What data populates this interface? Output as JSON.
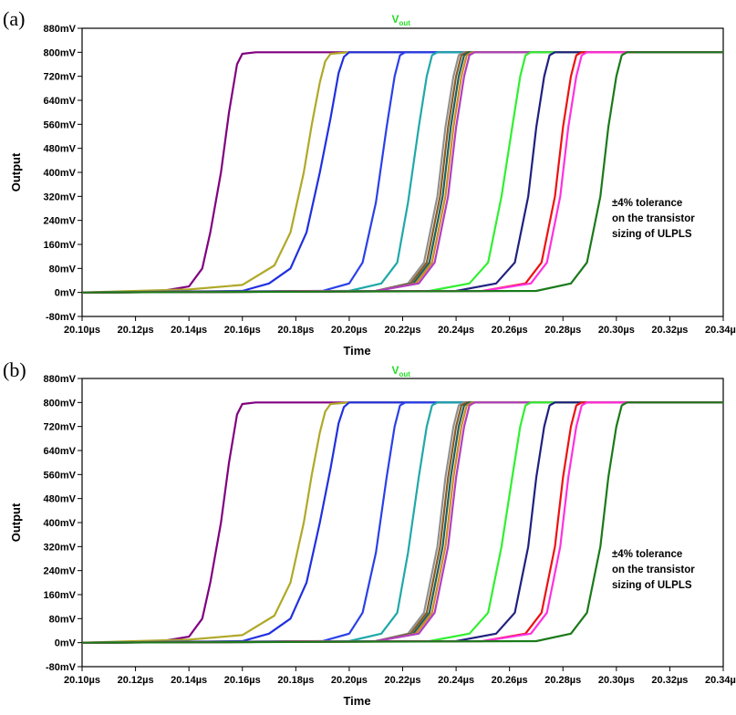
{
  "chart_data": [
    {
      "type": "line",
      "panel": "(a)",
      "title": "V",
      "title_sub": "out",
      "title_color": "#22dd22",
      "xlabel": "Time",
      "ylabel": "Output",
      "x_ticks": [
        "20.10µs",
        "20.12µs",
        "20.14µs",
        "20.16µs",
        "20.18µs",
        "20.20µs",
        "20.22µs",
        "20.24µs",
        "20.26µs",
        "20.28µs",
        "20.30µs",
        "20.32µs",
        "20.34µs"
      ],
      "y_ticks": [
        "-80mV",
        "0mV",
        "80mV",
        "160mV",
        "240mV",
        "320mV",
        "400mV",
        "480mV",
        "560mV",
        "640mV",
        "720mV",
        "800mV",
        "880mV"
      ],
      "xlim_us": [
        20.1,
        20.34
      ],
      "ylim_mV": [
        -80,
        880
      ],
      "annotation": [
        "±4% tolerance",
        "on the transistor",
        "sizing of  ULPLS"
      ],
      "series": [
        {
          "name": "purple",
          "color": "#800080",
          "x": [
            20.1,
            20.13,
            20.14,
            20.145,
            20.148,
            20.152,
            20.155,
            20.158,
            20.16,
            20.165,
            20.34
          ],
          "y": [
            0,
            5,
            20,
            80,
            200,
            400,
            600,
            760,
            795,
            800,
            800
          ]
        },
        {
          "name": "olive",
          "color": "#b0a828",
          "x": [
            20.1,
            20.14,
            20.16,
            20.172,
            20.178,
            20.183,
            20.186,
            20.189,
            20.191,
            20.193,
            20.2,
            20.34
          ],
          "y": [
            0,
            10,
            25,
            90,
            200,
            400,
            560,
            700,
            770,
            795,
            800,
            800
          ]
        },
        {
          "name": "blue",
          "color": "#2030e0",
          "x": [
            20.1,
            20.16,
            20.17,
            20.178,
            20.184,
            20.189,
            20.193,
            20.196,
            20.198,
            20.2,
            20.34
          ],
          "y": [
            0,
            5,
            30,
            80,
            200,
            400,
            580,
            730,
            785,
            800,
            800
          ]
        },
        {
          "name": "blue2",
          "color": "#2a40e8",
          "x": [
            20.1,
            20.19,
            20.2,
            20.205,
            20.21,
            20.214,
            20.217,
            20.219,
            20.221,
            20.34
          ],
          "y": [
            0,
            5,
            30,
            100,
            300,
            550,
            720,
            790,
            800,
            800
          ]
        },
        {
          "name": "teal",
          "color": "#20a8a8",
          "x": [
            20.1,
            20.2,
            20.212,
            20.218,
            20.222,
            20.226,
            20.229,
            20.231,
            20.233,
            20.34
          ],
          "y": [
            0,
            5,
            30,
            100,
            300,
            550,
            720,
            790,
            800,
            800
          ]
        },
        {
          "name": "gray",
          "color": "#909090",
          "x": [
            20.1,
            20.21,
            20.222,
            20.228,
            20.233,
            20.236,
            20.239,
            20.241,
            20.243,
            20.34
          ],
          "y": [
            0,
            5,
            30,
            100,
            320,
            550,
            720,
            790,
            800,
            800
          ]
        },
        {
          "name": "brown",
          "color": "#8a5a20",
          "x": [
            20.1,
            20.21,
            20.223,
            20.229,
            20.234,
            20.237,
            20.24,
            20.242,
            20.244,
            20.34
          ],
          "y": [
            0,
            5,
            30,
            100,
            320,
            550,
            720,
            790,
            800,
            800
          ]
        },
        {
          "name": "darkteal",
          "color": "#1a6060",
          "x": [
            20.1,
            20.21,
            20.224,
            20.23,
            20.235,
            20.238,
            20.241,
            20.243,
            20.245,
            20.34
          ],
          "y": [
            0,
            5,
            30,
            100,
            320,
            550,
            720,
            790,
            800,
            800
          ]
        },
        {
          "name": "orange",
          "color": "#d08a20",
          "x": [
            20.1,
            20.21,
            20.225,
            20.231,
            20.236,
            20.239,
            20.242,
            20.244,
            20.246,
            20.34
          ],
          "y": [
            0,
            5,
            30,
            100,
            320,
            550,
            720,
            790,
            800,
            800
          ]
        },
        {
          "name": "violet",
          "color": "#b040c0",
          "x": [
            20.1,
            20.21,
            20.226,
            20.232,
            20.237,
            20.24,
            20.243,
            20.245,
            20.247,
            20.34
          ],
          "y": [
            0,
            5,
            30,
            100,
            320,
            550,
            720,
            790,
            800,
            800
          ]
        },
        {
          "name": "green",
          "color": "#30f030",
          "x": [
            20.1,
            20.23,
            20.245,
            20.252,
            20.257,
            20.261,
            20.264,
            20.266,
            20.268,
            20.34
          ],
          "y": [
            0,
            5,
            30,
            100,
            320,
            550,
            720,
            790,
            800,
            800
          ]
        },
        {
          "name": "navy",
          "color": "#202080",
          "x": [
            20.1,
            20.24,
            20.255,
            20.262,
            20.267,
            20.27,
            20.273,
            20.275,
            20.277,
            20.34
          ],
          "y": [
            0,
            5,
            30,
            100,
            320,
            550,
            720,
            790,
            800,
            800
          ]
        },
        {
          "name": "red",
          "color": "#ee1010",
          "x": [
            20.1,
            20.25,
            20.266,
            20.272,
            20.277,
            20.28,
            20.283,
            20.285,
            20.287,
            20.34
          ],
          "y": [
            0,
            5,
            30,
            100,
            320,
            550,
            720,
            790,
            800,
            800
          ]
        },
        {
          "name": "magenta",
          "color": "#ff30e0",
          "x": [
            20.1,
            20.25,
            20.268,
            20.274,
            20.279,
            20.282,
            20.285,
            20.287,
            20.289,
            20.34
          ],
          "y": [
            0,
            5,
            30,
            100,
            320,
            550,
            720,
            790,
            800,
            800
          ]
        },
        {
          "name": "darkgreen",
          "color": "#1a7a1a",
          "x": [
            20.1,
            20.27,
            20.283,
            20.289,
            20.294,
            20.297,
            20.3,
            20.302,
            20.304,
            20.34
          ],
          "y": [
            0,
            5,
            30,
            100,
            320,
            550,
            720,
            790,
            800,
            800
          ]
        }
      ]
    },
    {
      "type": "line",
      "panel": "(b)",
      "title": "V",
      "title_sub": "out",
      "title_color": "#22dd22",
      "xlabel": "Time",
      "ylabel": "Output",
      "x_ticks": [
        "20.10µs",
        "20.12µs",
        "20.14µs",
        "20.16µs",
        "20.18µs",
        "20.20µs",
        "20.22µs",
        "20.24µs",
        "20.26µs",
        "20.28µs",
        "20.30µs",
        "20.32µs",
        "20.34µs"
      ],
      "y_ticks": [
        "-80mV",
        "0mV",
        "80mV",
        "160mV",
        "240mV",
        "320mV",
        "400mV",
        "480mV",
        "560mV",
        "640mV",
        "720mV",
        "800mV",
        "880mV"
      ],
      "xlim_us": [
        20.1,
        20.34
      ],
      "ylim_mV": [
        -80,
        880
      ],
      "annotation": [
        "±4% tolerance",
        "on the transistor",
        "sizing of  ULPLS"
      ],
      "series": [
        {
          "name": "purple",
          "color": "#800080",
          "x": [
            20.1,
            20.13,
            20.14,
            20.145,
            20.148,
            20.152,
            20.155,
            20.158,
            20.16,
            20.165,
            20.34
          ],
          "y": [
            0,
            5,
            20,
            80,
            200,
            400,
            600,
            760,
            795,
            800,
            800
          ]
        },
        {
          "name": "olive",
          "color": "#b0a828",
          "x": [
            20.1,
            20.14,
            20.16,
            20.172,
            20.178,
            20.183,
            20.186,
            20.189,
            20.191,
            20.193,
            20.2,
            20.34
          ],
          "y": [
            0,
            10,
            25,
            90,
            200,
            400,
            560,
            700,
            770,
            795,
            800,
            800
          ]
        },
        {
          "name": "blue",
          "color": "#2030e0",
          "x": [
            20.1,
            20.16,
            20.17,
            20.178,
            20.184,
            20.189,
            20.193,
            20.196,
            20.198,
            20.2,
            20.34
          ],
          "y": [
            0,
            5,
            30,
            80,
            200,
            400,
            580,
            730,
            785,
            800,
            800
          ]
        },
        {
          "name": "blue2",
          "color": "#2a40e8",
          "x": [
            20.1,
            20.19,
            20.2,
            20.205,
            20.21,
            20.214,
            20.217,
            20.219,
            20.221,
            20.34
          ],
          "y": [
            0,
            5,
            30,
            100,
            300,
            550,
            720,
            790,
            800,
            800
          ]
        },
        {
          "name": "teal",
          "color": "#20a8a8",
          "x": [
            20.1,
            20.2,
            20.212,
            20.218,
            20.222,
            20.226,
            20.229,
            20.231,
            20.233,
            20.34
          ],
          "y": [
            0,
            5,
            30,
            100,
            300,
            550,
            720,
            790,
            800,
            800
          ]
        },
        {
          "name": "gray",
          "color": "#909090",
          "x": [
            20.1,
            20.21,
            20.222,
            20.228,
            20.233,
            20.236,
            20.239,
            20.241,
            20.243,
            20.34
          ],
          "y": [
            0,
            5,
            30,
            100,
            320,
            550,
            720,
            790,
            800,
            800
          ]
        },
        {
          "name": "brown",
          "color": "#8a5a20",
          "x": [
            20.1,
            20.21,
            20.223,
            20.229,
            20.234,
            20.237,
            20.24,
            20.242,
            20.244,
            20.34
          ],
          "y": [
            0,
            5,
            30,
            100,
            320,
            550,
            720,
            790,
            800,
            800
          ]
        },
        {
          "name": "darkteal",
          "color": "#1a6060",
          "x": [
            20.1,
            20.21,
            20.224,
            20.23,
            20.235,
            20.238,
            20.241,
            20.243,
            20.245,
            20.34
          ],
          "y": [
            0,
            5,
            30,
            100,
            320,
            550,
            720,
            790,
            800,
            800
          ]
        },
        {
          "name": "orange",
          "color": "#d08a20",
          "x": [
            20.1,
            20.21,
            20.225,
            20.231,
            20.236,
            20.239,
            20.242,
            20.244,
            20.246,
            20.34
          ],
          "y": [
            0,
            5,
            30,
            100,
            320,
            550,
            720,
            790,
            800,
            800
          ]
        },
        {
          "name": "violet",
          "color": "#b040c0",
          "x": [
            20.1,
            20.21,
            20.226,
            20.232,
            20.237,
            20.24,
            20.243,
            20.245,
            20.247,
            20.34
          ],
          "y": [
            0,
            5,
            30,
            100,
            320,
            550,
            720,
            790,
            800,
            800
          ]
        },
        {
          "name": "green",
          "color": "#30f030",
          "x": [
            20.1,
            20.23,
            20.245,
            20.252,
            20.257,
            20.261,
            20.264,
            20.266,
            20.268,
            20.34
          ],
          "y": [
            0,
            5,
            30,
            100,
            320,
            550,
            720,
            790,
            800,
            800
          ]
        },
        {
          "name": "navy",
          "color": "#202080",
          "x": [
            20.1,
            20.24,
            20.255,
            20.262,
            20.267,
            20.27,
            20.273,
            20.275,
            20.277,
            20.34
          ],
          "y": [
            0,
            5,
            30,
            100,
            320,
            550,
            720,
            790,
            800,
            800
          ]
        },
        {
          "name": "red",
          "color": "#ee1010",
          "x": [
            20.1,
            20.25,
            20.266,
            20.272,
            20.277,
            20.28,
            20.283,
            20.285,
            20.287,
            20.34
          ],
          "y": [
            0,
            5,
            30,
            100,
            320,
            550,
            720,
            790,
            800,
            800
          ]
        },
        {
          "name": "magenta",
          "color": "#ff30e0",
          "x": [
            20.1,
            20.25,
            20.268,
            20.274,
            20.279,
            20.282,
            20.285,
            20.287,
            20.289,
            20.34
          ],
          "y": [
            0,
            5,
            30,
            100,
            320,
            550,
            720,
            790,
            800,
            800
          ]
        },
        {
          "name": "darkgreen",
          "color": "#1a7a1a",
          "x": [
            20.1,
            20.27,
            20.283,
            20.289,
            20.294,
            20.297,
            20.3,
            20.302,
            20.304,
            20.34
          ],
          "y": [
            0,
            5,
            30,
            100,
            320,
            550,
            720,
            790,
            800,
            800
          ]
        }
      ]
    }
  ]
}
